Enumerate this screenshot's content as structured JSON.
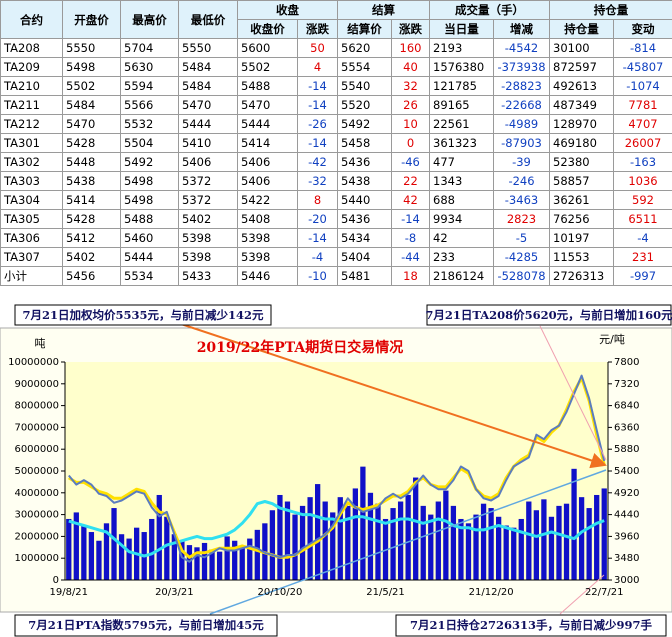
{
  "table": {
    "head1": [
      "合约",
      "开盘价",
      "最高价",
      "最低价",
      "收盘",
      "结算",
      "成交量（手）",
      "持仓量"
    ],
    "head2": [
      "收盘价",
      "涨跌",
      "结算价",
      "涨跌",
      "当日量",
      "增减",
      "持仓量",
      "变动"
    ],
    "rows": [
      [
        "TA208",
        "5550",
        "5704",
        "5550",
        "5600",
        "50",
        "5620",
        "160",
        "2193",
        "-4542",
        "30100",
        "-814"
      ],
      [
        "TA209",
        "5498",
        "5630",
        "5484",
        "5502",
        "4",
        "5554",
        "40",
        "1576380",
        "-373938",
        "872597",
        "-45807"
      ],
      [
        "TA210",
        "5502",
        "5594",
        "5484",
        "5488",
        "-14",
        "5540",
        "32",
        "121785",
        "-28823",
        "492613",
        "-1074"
      ],
      [
        "TA211",
        "5484",
        "5566",
        "5470",
        "5470",
        "-14",
        "5520",
        "26",
        "89165",
        "-22668",
        "487349",
        "7781"
      ],
      [
        "TA212",
        "5470",
        "5532",
        "5444",
        "5444",
        "-26",
        "5492",
        "10",
        "22561",
        "-4989",
        "128970",
        "4707"
      ],
      [
        "TA301",
        "5428",
        "5504",
        "5410",
        "5414",
        "-14",
        "5458",
        "0",
        "361323",
        "-87903",
        "469180",
        "26007"
      ],
      [
        "TA302",
        "5448",
        "5492",
        "5406",
        "5406",
        "-42",
        "5436",
        "-46",
        "477",
        "-39",
        "52380",
        "-163"
      ],
      [
        "TA303",
        "5438",
        "5498",
        "5372",
        "5406",
        "-32",
        "5438",
        "22",
        "1343",
        "-246",
        "58857",
        "1036"
      ],
      [
        "TA304",
        "5414",
        "5498",
        "5372",
        "5422",
        "8",
        "5440",
        "42",
        "688",
        "-3463",
        "36261",
        "592"
      ],
      [
        "TA305",
        "5428",
        "5488",
        "5402",
        "5408",
        "-20",
        "5436",
        "-14",
        "9934",
        "2823",
        "76256",
        "6511"
      ],
      [
        "TA306",
        "5412",
        "5460",
        "5398",
        "5398",
        "-14",
        "5434",
        "-8",
        "42",
        "-5",
        "10197",
        "-4"
      ],
      [
        "TA307",
        "5402",
        "5444",
        "5398",
        "5398",
        "-4",
        "5404",
        "-44",
        "233",
        "-4285",
        "11553",
        "231"
      ],
      [
        "小计",
        "5456",
        "5534",
        "5433",
        "5446",
        "-10",
        "5481",
        "18",
        "2186124",
        "-528078",
        "2726313",
        "-997"
      ]
    ]
  },
  "annotations": [
    "7月21日加权均价5535元，与前日减少142元",
    "7月21日TA208价5620元，与前日增加160元",
    "7月21日PTA指数5795元，与前日增加45元",
    "7月21日持仓2726313手，与前日减少997手"
  ],
  "chart_data": {
    "type": "bar",
    "title": "2019/22年PTA期货日交易情况",
    "y_label": "吨",
    "y2_label": "元/吨",
    "categories": [
      "19/8/21",
      null,
      null,
      null,
      null,
      null,
      null,
      null,
      null,
      null,
      null,
      null,
      null,
      null,
      "20/3/21",
      null,
      null,
      null,
      null,
      null,
      null,
      null,
      null,
      null,
      null,
      null,
      null,
      null,
      "20/10/20",
      null,
      null,
      null,
      null,
      null,
      null,
      null,
      null,
      null,
      null,
      null,
      null,
      null,
      "21/5/21",
      null,
      null,
      null,
      null,
      null,
      null,
      null,
      null,
      null,
      null,
      null,
      null,
      null,
      "21/12/20",
      null,
      null,
      null,
      null,
      null,
      null,
      null,
      null,
      null,
      null,
      null,
      null,
      null,
      null,
      "22/7/21"
    ],
    "ylim": [
      0,
      10000000
    ],
    "yticks": [
      0,
      1000000,
      2000000,
      3000000,
      4000000,
      5000000,
      6000000,
      7000000,
      8000000,
      9000000,
      10000000
    ],
    "y2lim": [
      3000,
      7800
    ],
    "y2ticks": [
      3000,
      3480,
      3960,
      4440,
      4920,
      5400,
      5880,
      6360,
      6840,
      7320,
      7800
    ],
    "series": [
      {
        "type": "bar",
        "color": "#1010c8",
        "values": [
          2800000,
          3100000,
          2500000,
          2200000,
          1800000,
          2600000,
          3300000,
          2100000,
          1900000,
          2400000,
          2200000,
          2800000,
          3900000,
          2900000,
          2100000,
          1800000,
          1600000,
          1500000,
          1700000,
          1400000,
          1300000,
          2000000,
          1800000,
          1500000,
          1900000,
          2300000,
          2600000,
          3200000,
          3900000,
          3600000,
          3000000,
          3400000,
          3800000,
          4400000,
          3600000,
          3100000,
          3800000,
          3400000,
          4200000,
          5200000,
          4000000,
          3500000,
          2800000,
          3300000,
          3600000,
          3900000,
          4700000,
          3400000,
          3000000,
          3600000,
          4100000,
          3400000,
          2800000,
          2600000,
          3000000,
          3500000,
          3300000,
          2900000,
          2500000,
          2400000,
          2800000,
          3600000,
          3200000,
          3700000,
          2900000,
          3400000,
          3500000,
          5100000,
          3800000,
          3300000,
          3900000,
          4200000
        ]
      },
      {
        "type": "line",
        "color": "#30e0f0",
        "values": [
          2700000,
          2600000,
          2500000,
          2400000,
          2300000,
          2200000,
          1900000,
          1600000,
          1300000,
          1200000,
          1100000,
          1200000,
          1400000,
          1600000,
          1700000,
          1800000,
          1900000,
          2000000,
          1900000,
          1900000,
          2000000,
          2100000,
          2300000,
          2600000,
          3000000,
          3500000,
          3600000,
          3500000,
          3300000,
          3200000,
          3100000,
          3000000,
          3000000,
          2900000,
          2800000,
          2800000,
          2700000,
          2800000,
          2900000,
          2900000,
          2800000,
          2700000,
          2600000,
          2700000,
          2800000,
          2800000,
          2700000,
          2600000,
          2700000,
          2800000,
          2700000,
          2500000,
          2400000,
          2400000,
          2300000,
          2300000,
          2400000,
          2500000,
          2400000,
          2300000,
          2200000,
          2100000,
          2000000,
          2100000,
          2200000,
          2100000,
          2000000,
          1900000,
          2200000,
          2400000,
          2600000,
          2726313
        ]
      },
      {
        "type": "line",
        "axis": "y2",
        "color": "#ffe000",
        "values": [
          5250,
          5150,
          5150,
          5050,
          4950,
          4900,
          4800,
          4800,
          4900,
          5000,
          4950,
          4700,
          4500,
          4450,
          4050,
          3650,
          3500,
          3600,
          3600,
          3650,
          3700,
          3700,
          3700,
          3750,
          3700,
          3650,
          3600,
          3550,
          3500,
          3500,
          3550,
          3650,
          3750,
          3850,
          4000,
          4150,
          4450,
          4700,
          4600,
          4550,
          4600,
          4650,
          4750,
          4850,
          4850,
          4950,
          5150,
          5250,
          5100,
          5050,
          5050,
          5250,
          5450,
          5350,
          5000,
          4850,
          4800,
          4900,
          5250,
          5500,
          5650,
          5750,
          6150,
          6050,
          6250,
          6400,
          6750,
          7150,
          7450,
          6950,
          6200,
          5535
        ]
      },
      {
        "type": "line",
        "axis": "y2",
        "color": "#5a7cc0",
        "values": [
          5300,
          5100,
          5200,
          5100,
          4900,
          4850,
          4700,
          4750,
          4850,
          4950,
          4900,
          4600,
          4400,
          4500,
          4000,
          3500,
          3400,
          3550,
          3500,
          3600,
          3700,
          3650,
          3650,
          3700,
          3750,
          3700,
          3600,
          3550,
          3500,
          3550,
          3550,
          3700,
          3800,
          3900,
          4000,
          4200,
          4500,
          4800,
          4600,
          4500,
          4550,
          4600,
          4800,
          4900,
          4800,
          4900,
          5100,
          5300,
          5100,
          5000,
          5000,
          5200,
          5500,
          5400,
          5000,
          4800,
          4750,
          4850,
          5200,
          5500,
          5600,
          5700,
          6200,
          6100,
          6300,
          6400,
          6700,
          7100,
          7500,
          7000,
          6300,
          5620
        ]
      }
    ]
  }
}
